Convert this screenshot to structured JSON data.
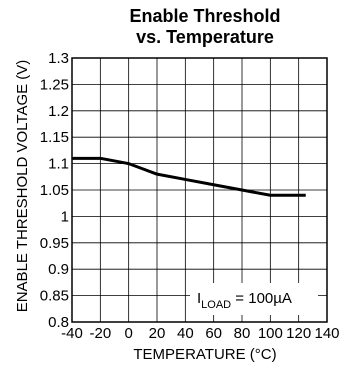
{
  "chart_data": {
    "type": "line",
    "title_line1": "Enable Threshold",
    "title_line2": "vs. Temperature",
    "xlabel": "TEMPERATURE (°C)",
    "ylabel": "ENABLE THRESHOLD VOLTAGE (V)",
    "xlim": [
      -40,
      140
    ],
    "ylim": [
      0.8,
      1.3
    ],
    "x_ticks": [
      -40,
      -20,
      0,
      20,
      40,
      60,
      80,
      100,
      120,
      140
    ],
    "x_tick_labels": [
      "-40",
      "-20",
      "0",
      "20",
      "40",
      "60",
      "80",
      "100",
      "120",
      "140"
    ],
    "y_ticks": [
      0.8,
      0.85,
      0.9,
      0.95,
      1.0,
      1.05,
      1.1,
      1.15,
      1.2,
      1.25,
      1.3
    ],
    "y_tick_labels": [
      "0.8",
      "0.85",
      "0.9",
      "0.95",
      "1",
      "1.05",
      "1.1",
      "1.15",
      "1.2",
      "1.25",
      "1.3"
    ],
    "grid": true,
    "annotation": {
      "prefix": "I",
      "subscript": "LOAD",
      "suffix": " = 100µA"
    },
    "series": [
      {
        "x": [
          -40,
          -20,
          -10,
          0,
          10,
          20,
          40,
          60,
          80,
          100,
          125
        ],
        "y": [
          1.11,
          1.11,
          1.105,
          1.1,
          1.09,
          1.08,
          1.07,
          1.06,
          1.05,
          1.04,
          1.04
        ]
      }
    ],
    "line_color": "#000000"
  }
}
